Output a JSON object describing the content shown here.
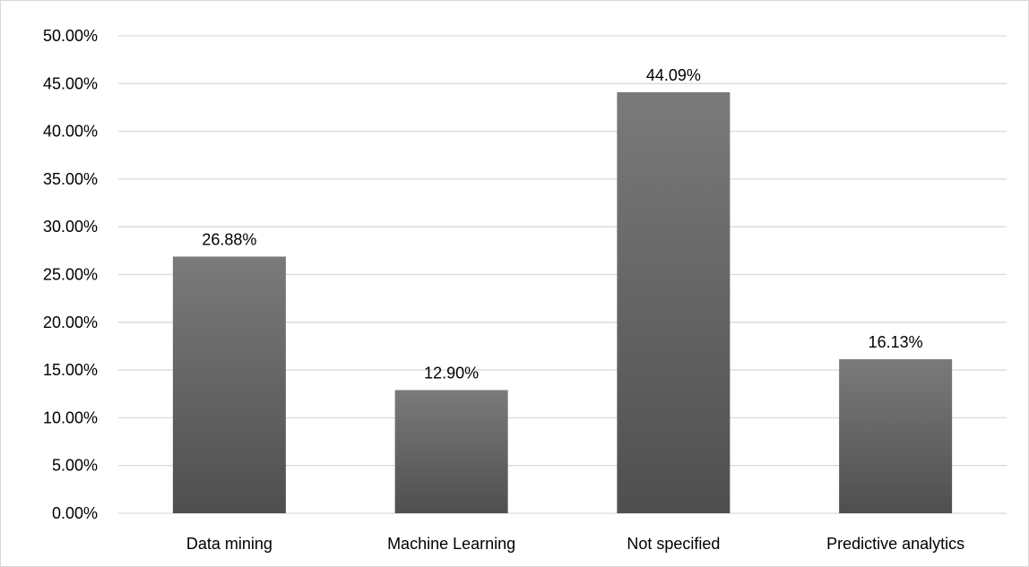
{
  "chart_data": {
    "type": "bar",
    "title": "",
    "xlabel": "",
    "ylabel": "",
    "categories": [
      "Data mining",
      "Machine Learning",
      "Not specified",
      "Predictive analytics"
    ],
    "values": [
      26.88,
      12.9,
      44.09,
      16.13
    ],
    "data_labels": [
      "26.88%",
      "12.90%",
      "44.09%",
      "16.13%"
    ],
    "ylim": [
      0,
      50
    ],
    "y_ticks": [
      0,
      5,
      10,
      15,
      20,
      25,
      30,
      35,
      40,
      45,
      50
    ],
    "y_tick_labels": [
      "0.00%",
      "5.00%",
      "10.00%",
      "15.00%",
      "20.00%",
      "25.00%",
      "30.00%",
      "35.00%",
      "40.00%",
      "45.00%",
      "50.00%"
    ],
    "grid": "horizontal",
    "legend": "none",
    "colors": {
      "bar_top": "#7a7a7a",
      "bar_bottom": "#4f4f4f",
      "gridline": "#d9d9d9",
      "text": "#000000"
    }
  }
}
